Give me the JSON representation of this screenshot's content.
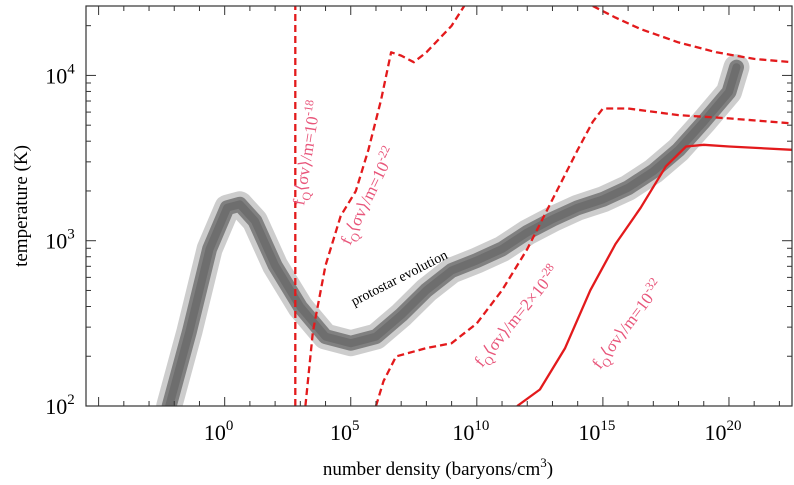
{
  "chart_data": {
    "type": "line",
    "xlabel_main": "number density (baryons/cm",
    "xlabel_sup": "3",
    "xlabel_end": ")",
    "ylabel": "temperature (K)",
    "x_scale": "log",
    "y_scale": "log",
    "xlim_log10": [
      -5.5,
      22.5
    ],
    "ylim_log10": [
      2,
      4.42
    ],
    "grid": false,
    "x_ticks": [
      {
        "base": "10",
        "exp": "0",
        "log10": 0
      },
      {
        "base": "10",
        "exp": "5",
        "log10": 5
      },
      {
        "base": "10",
        "exp": "10",
        "log10": 10
      },
      {
        "base": "10",
        "exp": "15",
        "log10": 15
      },
      {
        "base": "10",
        "exp": "20",
        "log10": 20
      }
    ],
    "y_ticks": [
      {
        "base": "10",
        "exp": "2",
        "log10": 2
      },
      {
        "base": "10",
        "exp": "3",
        "log10": 3
      },
      {
        "base": "10",
        "exp": "4",
        "log10": 4
      }
    ],
    "track": {
      "label": "protostar evolution",
      "color_outer": "#c8c8c8",
      "color_inner": "#808080",
      "color_core": "#6e6e6e",
      "points_log10": [
        [
          -2.2,
          2.0
        ],
        [
          -1.4,
          2.45
        ],
        [
          -0.6,
          2.95
        ],
        [
          0.1,
          3.2
        ],
        [
          0.6,
          3.22
        ],
        [
          1.2,
          3.12
        ],
        [
          2.0,
          2.85
        ],
        [
          3.0,
          2.6
        ],
        [
          4.0,
          2.42
        ],
        [
          5.0,
          2.38
        ],
        [
          6.0,
          2.42
        ],
        [
          7.0,
          2.55
        ],
        [
          8.0,
          2.7
        ],
        [
          9.0,
          2.82
        ],
        [
          10.0,
          2.88
        ],
        [
          11.0,
          2.95
        ],
        [
          12.0,
          3.05
        ],
        [
          13.0,
          3.13
        ],
        [
          14.0,
          3.2
        ],
        [
          15.0,
          3.25
        ],
        [
          16.0,
          3.32
        ],
        [
          17.0,
          3.42
        ],
        [
          18.0,
          3.55
        ],
        [
          19.0,
          3.72
        ],
        [
          20.0,
          3.9
        ],
        [
          20.3,
          4.05
        ]
      ]
    },
    "series": [
      {
        "label_base": "f",
        "label_sub": "Q",
        "label_mid": "⟨σv⟩/m=10",
        "label_exp": "-18",
        "style": "dashed",
        "color": "#e31a1c",
        "points_log10": [
          [
            2.8,
            2.0
          ],
          [
            2.8,
            4.42
          ]
        ]
      },
      {
        "label_base": "f",
        "label_sub": "Q",
        "label_mid": "⟨σv⟩/m=10",
        "label_exp": "-22",
        "style": "dashed",
        "color": "#e31a1c",
        "points_log10": [
          [
            3.2,
            2.0
          ],
          [
            3.5,
            2.45
          ],
          [
            4.0,
            2.85
          ],
          [
            4.6,
            3.15
          ],
          [
            5.2,
            3.3
          ],
          [
            5.7,
            3.55
          ],
          [
            6.2,
            3.85
          ],
          [
            6.6,
            4.14
          ],
          [
            7.0,
            4.12
          ],
          [
            7.5,
            4.08
          ],
          [
            8.0,
            4.14
          ],
          [
            9.0,
            4.3
          ],
          [
            9.5,
            4.42
          ]
        ]
      },
      {
        "label_base": "f",
        "label_sub": "Q",
        "label_mid": "⟨σv⟩/m=2×10",
        "label_exp": "-28",
        "style": "dashed",
        "color": "#e31a1c",
        "points_log10": [
          [
            6.0,
            2.0
          ],
          [
            6.3,
            2.15
          ],
          [
            6.8,
            2.3
          ],
          [
            8.0,
            2.35
          ],
          [
            9.0,
            2.38
          ],
          [
            10.0,
            2.5
          ],
          [
            11.0,
            2.7
          ],
          [
            12.0,
            2.95
          ],
          [
            13.0,
            3.25
          ],
          [
            14.0,
            3.55
          ],
          [
            14.6,
            3.72
          ],
          [
            15.0,
            3.8
          ],
          [
            16.0,
            3.8
          ],
          [
            18.0,
            3.76
          ],
          [
            20.0,
            3.74
          ],
          [
            22.5,
            3.71
          ]
        ]
      },
      {
        "label_base": "f",
        "label_sub": "Q",
        "label_mid": "⟨σv⟩/m=10",
        "label_exp": "-32",
        "style": "solid",
        "color": "#e31a1c",
        "points_log10": [
          [
            11.6,
            2.0
          ],
          [
            12.5,
            2.1
          ],
          [
            13.5,
            2.35
          ],
          [
            14.5,
            2.7
          ],
          [
            15.5,
            2.98
          ],
          [
            16.5,
            3.2
          ],
          [
            17.5,
            3.45
          ],
          [
            18.3,
            3.57
          ],
          [
            19.0,
            3.58
          ],
          [
            20.0,
            3.57
          ],
          [
            22.5,
            3.55
          ]
        ]
      },
      {
        "style": "dashed",
        "color": "#e31a1c",
        "points_log10": [
          [
            14.6,
            4.42
          ],
          [
            15.5,
            4.35
          ],
          [
            16.5,
            4.28
          ],
          [
            18.0,
            4.2
          ],
          [
            19.5,
            4.14
          ],
          [
            21.0,
            4.1
          ],
          [
            22.5,
            4.08
          ]
        ]
      }
    ]
  }
}
